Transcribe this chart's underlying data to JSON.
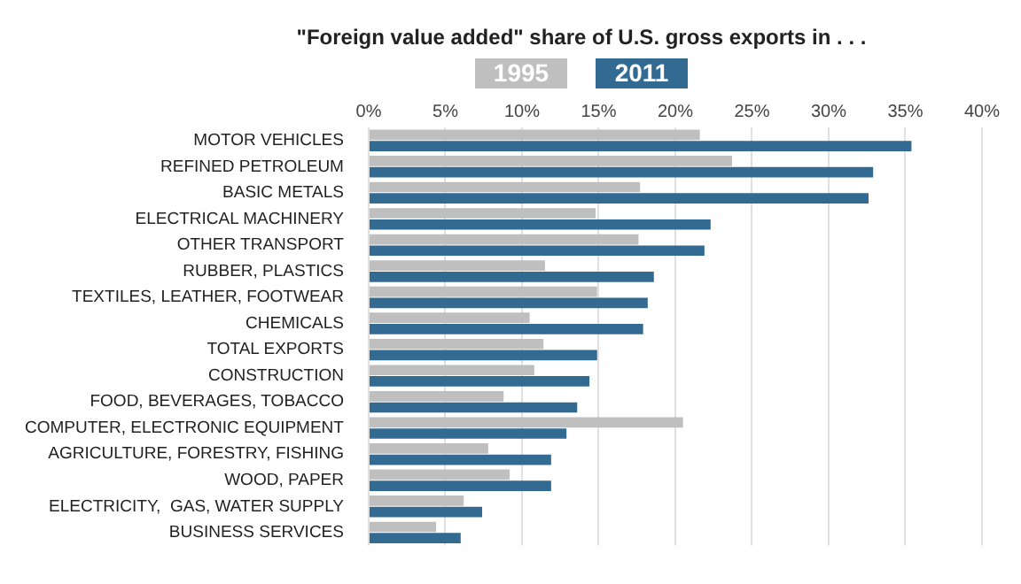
{
  "chart_data": {
    "type": "bar",
    "orientation": "horizontal",
    "title": "\"Foreign value added\" share of U.S. gross exports in . . .",
    "categories": [
      "MOTOR VEHICLES",
      "REFINED PETROLEUM",
      "BASIC METALS",
      "ELECTRICAL MACHINERY",
      "OTHER TRANSPORT",
      "RUBBER, PLASTICS",
      "TEXTILES, LEATHER, FOOTWEAR",
      "CHEMICALS",
      "TOTAL EXPORTS",
      "CONSTRUCTION",
      "FOOD, BEVERAGES, TOBACCO",
      "COMPUTER, ELECTRONIC EQUIPMENT",
      "AGRICULTURE, FORESTRY, FISHING",
      "WOOD, PAPER",
      "ELECTRICITY,  GAS, WATER SUPPLY",
      "BUSINESS SERVICES"
    ],
    "series": [
      {
        "name": "1995",
        "color": "#bfbfbf",
        "values": [
          21.6,
          23.7,
          17.7,
          14.8,
          17.6,
          11.5,
          14.9,
          10.5,
          11.4,
          10.8,
          8.8,
          20.5,
          7.8,
          9.2,
          6.2,
          4.4
        ]
      },
      {
        "name": "2011",
        "color": "#336a91",
        "values": [
          35.4,
          32.9,
          32.6,
          22.3,
          21.9,
          18.6,
          18.2,
          17.9,
          14.9,
          14.4,
          13.6,
          12.9,
          11.9,
          11.9,
          7.4,
          6.0
        ]
      }
    ],
    "xlim": [
      0,
      40
    ],
    "xticks": [
      {
        "value": 0,
        "label": "0%"
      },
      {
        "value": 5,
        "label": "5%"
      },
      {
        "value": 10,
        "label": "10%"
      },
      {
        "value": 15,
        "label": "15%"
      },
      {
        "value": 20,
        "label": "20%"
      },
      {
        "value": 25,
        "label": "25%"
      },
      {
        "value": 30,
        "label": "30%"
      },
      {
        "value": 35,
        "label": "35%"
      },
      {
        "value": 40,
        "label": "40%"
      }
    ],
    "grid": "x",
    "legend": "top"
  }
}
